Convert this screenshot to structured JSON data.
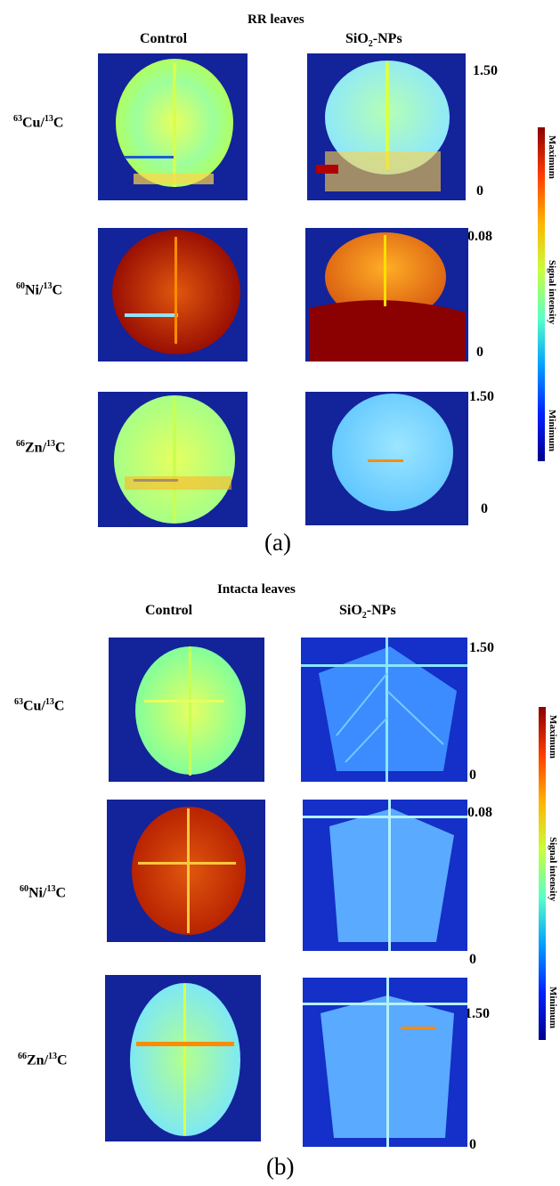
{
  "panel_a": {
    "title": "RR leaves",
    "col_control": "Control",
    "col_sio2_prefix": "SiO",
    "col_sio2_sub": "2",
    "col_sio2_suffix": "-NPs",
    "rows": [
      {
        "sup1": "63",
        "el": "Cu/",
        "sup2": "13",
        "el2": "C",
        "max": "1.50",
        "min": "0"
      },
      {
        "sup1": "60",
        "el": "Ni/",
        "sup2": "13",
        "el2": "C",
        "max": "0.08",
        "min": "0"
      },
      {
        "sup1": "66",
        "el": "Zn/",
        "sup2": "13",
        "el2": "C",
        "max": "1.50",
        "min": "0"
      }
    ],
    "colorbar": {
      "max_label": "Maximum",
      "mid_label": "Signal intensity",
      "min_label": "Minimum"
    },
    "label": "(a)"
  },
  "panel_b": {
    "title": "Intacta leaves",
    "col_control": "Control",
    "col_sio2_prefix": "SiO",
    "col_sio2_sub": "2",
    "col_sio2_suffix": "-NPs",
    "rows": [
      {
        "sup1": "63",
        "el": "Cu/",
        "sup2": "13",
        "el2": "C",
        "max": "1.50",
        "min": "0"
      },
      {
        "sup1": "60",
        "el": "Ni/",
        "sup2": "13",
        "el2": "C",
        "max": "0.08",
        "min": "0"
      },
      {
        "sup1": "66",
        "el": "Zn/",
        "sup2": "13",
        "el2": "C",
        "max": "1.50",
        "min": "0"
      }
    ],
    "colorbar": {
      "max_label": "Maximum",
      "mid_label": "Signal intensity",
      "min_label": "Minimum"
    },
    "label": "(b)"
  },
  "colors": {
    "background_map": "#10208c",
    "jet": [
      "#00008f",
      "#0020ff",
      "#00c8ff",
      "#7fff7f",
      "#ffe000",
      "#ff5000",
      "#8b0000"
    ]
  }
}
